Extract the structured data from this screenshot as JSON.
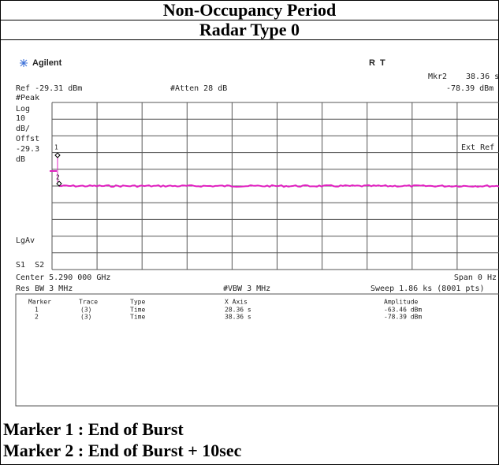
{
  "title": "Non-Occupancy Period",
  "subtitle": "Radar Type 0",
  "screen": {
    "brand": "Agilent",
    "status": "R  T",
    "marker_label": "Mkr2",
    "marker_x": "38.36 s",
    "marker_amplitude": "-78.39 dBm",
    "ref": "Ref -29.31 dBm",
    "atten": "#Atten 28 dB",
    "left_labels": [
      "#Peak",
      "Log",
      "10",
      "dB/",
      "Offst",
      "-29.3",
      "dB",
      "LgAv",
      "S1  S2"
    ],
    "ext_ref": "Ext Ref",
    "marker_numbers": [
      "1",
      "2"
    ],
    "center": "Center 5.290 000 GHz",
    "span": "Span 0 Hz",
    "res_bw": "Res BW 3 MHz",
    "vbw": "#VBW 3 MHz",
    "sweep": "Sweep 1.86 ks (8001 pts)",
    "table": {
      "headers": [
        "Marker",
        "Trace",
        "Type",
        "X Axis",
        "Amplitude"
      ],
      "rows": [
        [
          "1",
          "(3)",
          "Time",
          "28.36 s",
          "-63.46 dBm"
        ],
        [
          "2",
          "(3)",
          "Time",
          "38.36 s",
          "-78.39 dBm"
        ]
      ]
    }
  },
  "notes": [
    "Marker 1 : End of Burst",
    "Marker 2 : End of Burst + 10sec"
  ]
}
